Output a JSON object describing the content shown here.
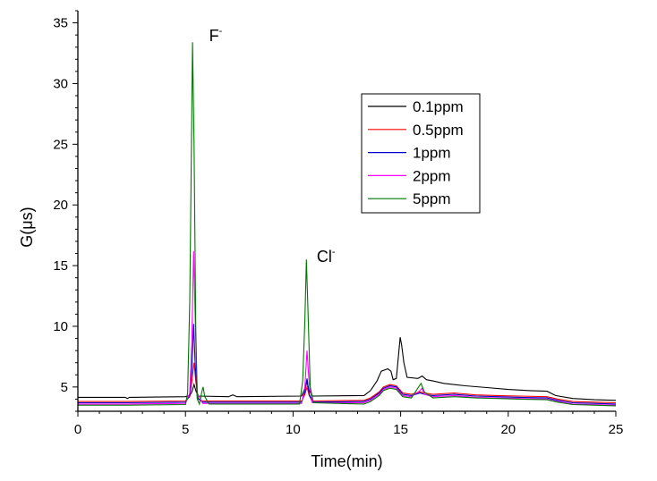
{
  "chart_data": {
    "type": "line",
    "title": "",
    "xlabel": "Time(min)",
    "ylabel": "G(μs)",
    "xlim": [
      0,
      25
    ],
    "ylim": [
      3.0,
      36.0
    ],
    "x_ticks": [
      0,
      5,
      10,
      15,
      20,
      25
    ],
    "y_ticks": [
      5,
      10,
      15,
      20,
      25,
      30,
      35
    ],
    "grid": false,
    "legend_position": "upper-right",
    "annotations": [
      {
        "text": "F",
        "sup": "-",
        "x": 6.1,
        "y": 33.5
      },
      {
        "text": "Cl",
        "sup": "-",
        "x": 11.1,
        "y": 15.3
      }
    ],
    "series": [
      {
        "name": "0.1ppm",
        "color": "#000000",
        "points": [
          [
            0,
            4.15
          ],
          [
            2.2,
            4.15
          ],
          [
            2.3,
            4.05
          ],
          [
            2.4,
            4.15
          ],
          [
            5.0,
            4.2
          ],
          [
            5.2,
            4.3
          ],
          [
            5.3,
            4.6
          ],
          [
            5.4,
            5.2
          ],
          [
            5.5,
            4.6
          ],
          [
            5.6,
            4.25
          ],
          [
            7.0,
            4.2
          ],
          [
            7.2,
            4.35
          ],
          [
            7.4,
            4.2
          ],
          [
            10.4,
            4.25
          ],
          [
            10.55,
            4.9
          ],
          [
            10.65,
            5.4
          ],
          [
            10.75,
            4.7
          ],
          [
            10.9,
            4.25
          ],
          [
            13.3,
            4.3
          ],
          [
            13.6,
            4.7
          ],
          [
            13.9,
            5.5
          ],
          [
            14.1,
            6.3
          ],
          [
            14.4,
            6.5
          ],
          [
            14.55,
            6.3
          ],
          [
            14.65,
            5.6
          ],
          [
            14.8,
            5.7
          ],
          [
            14.9,
            7.6
          ],
          [
            14.98,
            9.1
          ],
          [
            15.05,
            8.4
          ],
          [
            15.15,
            7.0
          ],
          [
            15.3,
            5.8
          ],
          [
            15.8,
            5.7
          ],
          [
            16.0,
            5.9
          ],
          [
            16.2,
            5.6
          ],
          [
            16.5,
            5.5
          ],
          [
            17.0,
            5.3
          ],
          [
            18.0,
            5.1
          ],
          [
            19.0,
            4.95
          ],
          [
            20.0,
            4.8
          ],
          [
            21.0,
            4.7
          ],
          [
            21.8,
            4.65
          ],
          [
            22.2,
            4.3
          ],
          [
            23.0,
            4.05
          ],
          [
            24.0,
            3.95
          ],
          [
            25.0,
            3.9
          ]
        ]
      },
      {
        "name": "0.5ppm",
        "color": "#ff0000",
        "points": [
          [
            0,
            3.8
          ],
          [
            2.2,
            3.8
          ],
          [
            5.0,
            3.85
          ],
          [
            5.2,
            4.2
          ],
          [
            5.3,
            5.5
          ],
          [
            5.4,
            7.0
          ],
          [
            5.48,
            5.5
          ],
          [
            5.6,
            4.0
          ],
          [
            5.8,
            3.85
          ],
          [
            10.4,
            3.85
          ],
          [
            10.55,
            4.4
          ],
          [
            10.65,
            5.0
          ],
          [
            10.75,
            4.3
          ],
          [
            10.9,
            3.85
          ],
          [
            13.3,
            3.9
          ],
          [
            13.6,
            4.1
          ],
          [
            14.0,
            4.6
          ],
          [
            14.2,
            5.0
          ],
          [
            14.5,
            5.2
          ],
          [
            14.8,
            5.1
          ],
          [
            15.1,
            4.5
          ],
          [
            15.5,
            4.4
          ],
          [
            15.9,
            4.6
          ],
          [
            16.1,
            4.5
          ],
          [
            16.5,
            4.4
          ],
          [
            17.5,
            4.5
          ],
          [
            18.5,
            4.35
          ],
          [
            19.5,
            4.3
          ],
          [
            20.5,
            4.25
          ],
          [
            21.8,
            4.2
          ],
          [
            22.3,
            4.0
          ],
          [
            23.0,
            3.8
          ],
          [
            24.0,
            3.75
          ],
          [
            25.0,
            3.7
          ]
        ]
      },
      {
        "name": "1ppm",
        "color": "#0000cc",
        "points": [
          [
            0,
            3.7
          ],
          [
            2.2,
            3.7
          ],
          [
            5.0,
            3.75
          ],
          [
            5.2,
            4.3
          ],
          [
            5.3,
            6.5
          ],
          [
            5.38,
            10.2
          ],
          [
            5.45,
            7.0
          ],
          [
            5.55,
            4.1
          ],
          [
            5.8,
            3.75
          ],
          [
            10.4,
            3.75
          ],
          [
            10.55,
            4.6
          ],
          [
            10.65,
            5.7
          ],
          [
            10.75,
            4.4
          ],
          [
            10.9,
            3.75
          ],
          [
            13.3,
            3.8
          ],
          [
            13.6,
            4.0
          ],
          [
            14.0,
            4.5
          ],
          [
            14.2,
            4.9
          ],
          [
            14.5,
            5.1
          ],
          [
            14.8,
            5.0
          ],
          [
            15.1,
            4.4
          ],
          [
            15.5,
            4.3
          ],
          [
            15.9,
            4.5
          ],
          [
            16.1,
            4.4
          ],
          [
            16.5,
            4.3
          ],
          [
            17.5,
            4.4
          ],
          [
            18.5,
            4.25
          ],
          [
            19.5,
            4.2
          ],
          [
            20.5,
            4.15
          ],
          [
            21.8,
            4.1
          ],
          [
            22.3,
            3.9
          ],
          [
            23.0,
            3.7
          ],
          [
            24.0,
            3.65
          ],
          [
            25.0,
            3.6
          ]
        ]
      },
      {
        "name": "2ppm",
        "color": "#ff00ff",
        "points": [
          [
            0,
            3.6
          ],
          [
            2.2,
            3.6
          ],
          [
            5.0,
            3.65
          ],
          [
            5.2,
            4.5
          ],
          [
            5.3,
            9.0
          ],
          [
            5.38,
            16.2
          ],
          [
            5.46,
            10.0
          ],
          [
            5.55,
            4.5
          ],
          [
            5.8,
            3.65
          ],
          [
            10.4,
            3.65
          ],
          [
            10.55,
            5.0
          ],
          [
            10.65,
            8.0
          ],
          [
            10.75,
            5.3
          ],
          [
            10.9,
            3.7
          ],
          [
            13.3,
            3.7
          ],
          [
            13.6,
            3.9
          ],
          [
            14.0,
            4.4
          ],
          [
            14.2,
            4.8
          ],
          [
            14.5,
            5.0
          ],
          [
            14.8,
            4.9
          ],
          [
            15.1,
            4.3
          ],
          [
            15.5,
            4.2
          ],
          [
            15.9,
            4.7
          ],
          [
            16.0,
            4.9
          ],
          [
            16.1,
            4.4
          ],
          [
            16.5,
            4.2
          ],
          [
            17.5,
            4.3
          ],
          [
            18.5,
            4.15
          ],
          [
            19.5,
            4.1
          ],
          [
            20.5,
            4.05
          ],
          [
            21.8,
            4.0
          ],
          [
            22.3,
            3.8
          ],
          [
            23.0,
            3.6
          ],
          [
            24.0,
            3.55
          ],
          [
            25.0,
            3.5
          ]
        ]
      },
      {
        "name": "5ppm",
        "color": "#007700",
        "points": [
          [
            0,
            3.5
          ],
          [
            2.2,
            3.5
          ],
          [
            5.0,
            3.55
          ],
          [
            5.1,
            4.5
          ],
          [
            5.2,
            12.0
          ],
          [
            5.28,
            25.0
          ],
          [
            5.33,
            33.4
          ],
          [
            5.4,
            25.0
          ],
          [
            5.48,
            10.0
          ],
          [
            5.55,
            4.0
          ],
          [
            5.65,
            3.6
          ],
          [
            5.75,
            4.5
          ],
          [
            5.82,
            5.0
          ],
          [
            5.9,
            4.2
          ],
          [
            6.1,
            3.6
          ],
          [
            10.3,
            3.6
          ],
          [
            10.45,
            5.5
          ],
          [
            10.55,
            10.5
          ],
          [
            10.62,
            15.5
          ],
          [
            10.7,
            11.0
          ],
          [
            10.8,
            5.0
          ],
          [
            10.95,
            3.7
          ],
          [
            13.3,
            3.6
          ],
          [
            13.6,
            3.8
          ],
          [
            14.0,
            4.3
          ],
          [
            14.2,
            4.7
          ],
          [
            14.5,
            4.9
          ],
          [
            14.8,
            4.8
          ],
          [
            15.1,
            4.2
          ],
          [
            15.5,
            4.1
          ],
          [
            15.8,
            4.9
          ],
          [
            15.95,
            5.3
          ],
          [
            16.1,
            4.6
          ],
          [
            16.5,
            4.1
          ],
          [
            17.5,
            4.2
          ],
          [
            18.5,
            4.1
          ],
          [
            19.5,
            4.05
          ],
          [
            20.5,
            4.0
          ],
          [
            21.8,
            3.95
          ],
          [
            22.3,
            3.75
          ],
          [
            23.0,
            3.55
          ],
          [
            24.0,
            3.5
          ],
          [
            25.0,
            3.45
          ]
        ]
      }
    ]
  }
}
